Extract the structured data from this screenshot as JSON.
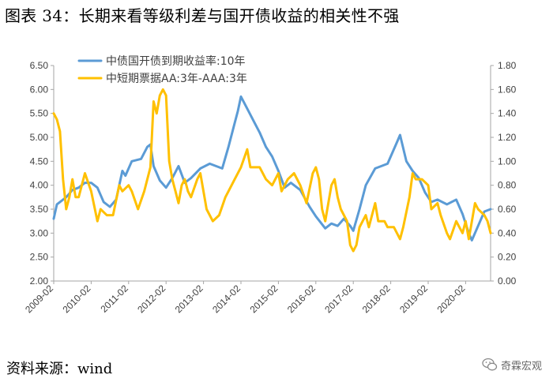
{
  "title": "图表 34：长期来看等级利差与国开债收益的相关性不强",
  "source": "资料来源：wind",
  "watermark": {
    "text": "奇霖宏观",
    "icon": "wechat-icon"
  },
  "chart_data": {
    "type": "line",
    "title": "",
    "xlabel": "",
    "ylabel": "",
    "ylim": [
      2.0,
      6.5
    ],
    "y2lim": [
      0.0,
      1.8
    ],
    "y_ticks": [
      "2.00",
      "2.50",
      "3.00",
      "3.50",
      "4.00",
      "4.50",
      "5.00",
      "5.50",
      "6.00",
      "6.50"
    ],
    "y2_ticks": [
      "0.00",
      "0.20",
      "0.40",
      "0.60",
      "0.80",
      "1.00",
      "1.20",
      "1.40",
      "1.60",
      "1.80"
    ],
    "x_ticks": [
      "2009-02",
      "2010-02",
      "2011-02",
      "2012-02",
      "2013-02",
      "2014-02",
      "2015-02",
      "2016-02",
      "2017-02",
      "2018-02",
      "2019-02",
      "2020-02"
    ],
    "x_range": [
      "2009-02",
      "2020-10"
    ],
    "grid": false,
    "legend_position": "top-left",
    "series": [
      {
        "name": "中债国开债到期收益率:10年",
        "axis": "left",
        "color": "#5B9BD5",
        "points": [
          [
            "2009-02",
            3.3
          ],
          [
            "2009-03",
            3.6
          ],
          [
            "2009-04",
            3.65
          ],
          [
            "2009-06",
            3.75
          ],
          [
            "2009-08",
            3.9
          ],
          [
            "2009-10",
            3.95
          ],
          [
            "2009-12",
            4.05
          ],
          [
            "2010-02",
            4.05
          ],
          [
            "2010-04",
            3.95
          ],
          [
            "2010-06",
            3.65
          ],
          [
            "2010-08",
            3.55
          ],
          [
            "2010-10",
            3.7
          ],
          [
            "2010-12",
            4.3
          ],
          [
            "2011-01",
            4.2
          ],
          [
            "2011-03",
            4.5
          ],
          [
            "2011-06",
            4.55
          ],
          [
            "2011-08",
            4.8
          ],
          [
            "2011-09",
            4.85
          ],
          [
            "2011-10",
            4.4
          ],
          [
            "2011-12",
            4.1
          ],
          [
            "2012-02",
            3.95
          ],
          [
            "2012-04",
            4.15
          ],
          [
            "2012-06",
            4.4
          ],
          [
            "2012-08",
            4.05
          ],
          [
            "2012-10",
            4.15
          ],
          [
            "2013-01",
            4.35
          ],
          [
            "2013-04",
            4.45
          ],
          [
            "2013-06",
            4.4
          ],
          [
            "2013-08",
            4.35
          ],
          [
            "2013-10",
            4.8
          ],
          [
            "2013-12",
            5.3
          ],
          [
            "2014-01",
            5.55
          ],
          [
            "2014-02",
            5.85
          ],
          [
            "2014-04",
            5.6
          ],
          [
            "2014-06",
            5.35
          ],
          [
            "2014-08",
            5.1
          ],
          [
            "2014-10",
            4.8
          ],
          [
            "2014-12",
            4.6
          ],
          [
            "2015-02",
            4.3
          ],
          [
            "2015-04",
            3.95
          ],
          [
            "2015-06",
            4.05
          ],
          [
            "2015-09",
            3.9
          ],
          [
            "2015-12",
            3.55
          ],
          [
            "2016-02",
            3.35
          ],
          [
            "2016-05",
            3.1
          ],
          [
            "2016-07",
            3.2
          ],
          [
            "2016-09",
            3.15
          ],
          [
            "2016-11",
            3.3
          ],
          [
            "2017-01",
            3.15
          ],
          [
            "2017-02",
            3.05
          ],
          [
            "2017-04",
            3.5
          ],
          [
            "2017-06",
            4.0
          ],
          [
            "2017-09",
            4.35
          ],
          [
            "2017-11",
            4.4
          ],
          [
            "2018-01",
            4.45
          ],
          [
            "2018-04",
            4.9
          ],
          [
            "2018-05",
            5.05
          ],
          [
            "2018-07",
            4.5
          ],
          [
            "2018-09",
            4.3
          ],
          [
            "2018-11",
            4.15
          ],
          [
            "2019-01",
            3.85
          ],
          [
            "2019-03",
            3.65
          ],
          [
            "2019-05",
            3.7
          ],
          [
            "2019-08",
            3.6
          ],
          [
            "2019-11",
            3.7
          ],
          [
            "2020-01",
            3.4
          ],
          [
            "2020-03",
            3.0
          ],
          [
            "2020-04",
            2.85
          ],
          [
            "2020-06",
            3.15
          ],
          [
            "2020-08",
            3.45
          ],
          [
            "2020-10",
            3.5
          ]
        ]
      },
      {
        "name": "中短期票据AA:3年-AAA:3年",
        "axis": "right",
        "color": "#FFC000",
        "points": [
          [
            "2009-02",
            1.4
          ],
          [
            "2009-03",
            1.35
          ],
          [
            "2009-04",
            1.25
          ],
          [
            "2009-05",
            0.85
          ],
          [
            "2009-06",
            0.6
          ],
          [
            "2009-07",
            0.7
          ],
          [
            "2009-08",
            0.85
          ],
          [
            "2009-09",
            0.7
          ],
          [
            "2009-10",
            0.7
          ],
          [
            "2009-12",
            0.9
          ],
          [
            "2010-02",
            0.75
          ],
          [
            "2010-04",
            0.5
          ],
          [
            "2010-05",
            0.6
          ],
          [
            "2010-07",
            0.55
          ],
          [
            "2010-09",
            0.55
          ],
          [
            "2010-11",
            0.8
          ],
          [
            "2010-12",
            0.75
          ],
          [
            "2011-02",
            0.8
          ],
          [
            "2011-03",
            0.75
          ],
          [
            "2011-05",
            0.6
          ],
          [
            "2011-07",
            0.75
          ],
          [
            "2011-09",
            0.95
          ],
          [
            "2011-10",
            1.5
          ],
          [
            "2011-11",
            1.4
          ],
          [
            "2011-12",
            1.55
          ],
          [
            "2012-01",
            1.6
          ],
          [
            "2012-02",
            1.55
          ],
          [
            "2012-03",
            1.0
          ],
          [
            "2012-04",
            0.85
          ],
          [
            "2012-05",
            0.75
          ],
          [
            "2012-06",
            0.65
          ],
          [
            "2012-07",
            0.8
          ],
          [
            "2012-08",
            0.85
          ],
          [
            "2012-09",
            0.75
          ],
          [
            "2012-10",
            0.7
          ],
          [
            "2012-12",
            0.85
          ],
          [
            "2013-01",
            0.9
          ],
          [
            "2013-03",
            0.6
          ],
          [
            "2013-05",
            0.5
          ],
          [
            "2013-07",
            0.55
          ],
          [
            "2013-09",
            0.7
          ],
          [
            "2013-10",
            0.75
          ],
          [
            "2013-12",
            0.85
          ],
          [
            "2014-02",
            0.95
          ],
          [
            "2014-04",
            1.1
          ],
          [
            "2014-05",
            0.95
          ],
          [
            "2014-06",
            0.95
          ],
          [
            "2014-08",
            0.95
          ],
          [
            "2014-10",
            0.85
          ],
          [
            "2014-12",
            0.8
          ],
          [
            "2015-02",
            0.9
          ],
          [
            "2015-03",
            0.75
          ],
          [
            "2015-05",
            0.85
          ],
          [
            "2015-07",
            0.9
          ],
          [
            "2015-09",
            0.8
          ],
          [
            "2015-11",
            0.65
          ],
          [
            "2016-01",
            0.9
          ],
          [
            "2016-02",
            0.95
          ],
          [
            "2016-03",
            0.85
          ],
          [
            "2016-04",
            0.6
          ],
          [
            "2016-05",
            0.5
          ],
          [
            "2016-07",
            0.8
          ],
          [
            "2016-08",
            0.85
          ],
          [
            "2016-09",
            0.7
          ],
          [
            "2016-10",
            0.6
          ],
          [
            "2016-12",
            0.5
          ],
          [
            "2017-01",
            0.3
          ],
          [
            "2017-02",
            0.25
          ],
          [
            "2017-03",
            0.3
          ],
          [
            "2017-04",
            0.45
          ],
          [
            "2017-06",
            0.55
          ],
          [
            "2017-07",
            0.45
          ],
          [
            "2017-09",
            0.65
          ],
          [
            "2017-10",
            0.5
          ],
          [
            "2017-12",
            0.5
          ],
          [
            "2018-01",
            0.45
          ],
          [
            "2018-03",
            0.45
          ],
          [
            "2018-05",
            0.35
          ],
          [
            "2018-06",
            0.45
          ],
          [
            "2018-08",
            0.7
          ],
          [
            "2018-09",
            0.9
          ],
          [
            "2018-10",
            0.85
          ],
          [
            "2018-12",
            0.85
          ],
          [
            "2019-02",
            0.8
          ],
          [
            "2019-03",
            0.6
          ],
          [
            "2019-05",
            0.65
          ],
          [
            "2019-06",
            0.55
          ],
          [
            "2019-08",
            0.4
          ],
          [
            "2019-09",
            0.35
          ],
          [
            "2019-11",
            0.5
          ],
          [
            "2019-12",
            0.45
          ],
          [
            "2020-01",
            0.4
          ],
          [
            "2020-02",
            0.5
          ],
          [
            "2020-03",
            0.35
          ],
          [
            "2020-05",
            0.65
          ],
          [
            "2020-06",
            0.6
          ],
          [
            "2020-08",
            0.55
          ],
          [
            "2020-09",
            0.5
          ],
          [
            "2020-10",
            0.4
          ]
        ]
      }
    ]
  }
}
